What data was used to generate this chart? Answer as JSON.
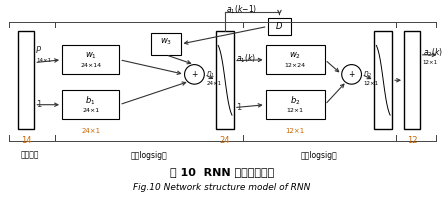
{
  "title_cn": "图 10  RNN 网络结构模型",
  "title_en": "Fig.10 Network structure model of RNN",
  "bg_color": "#ffffff",
  "section_labels": [
    "输入向量",
    "反馈logsig层",
    "输出logsig层"
  ],
  "bottom_nums": [
    "14",
    "24×1",
    "24",
    "12×1",
    "12"
  ],
  "colors": {
    "box": "#000000",
    "arrow": "#555555",
    "orange": "#cc6600",
    "text": "#000000"
  }
}
